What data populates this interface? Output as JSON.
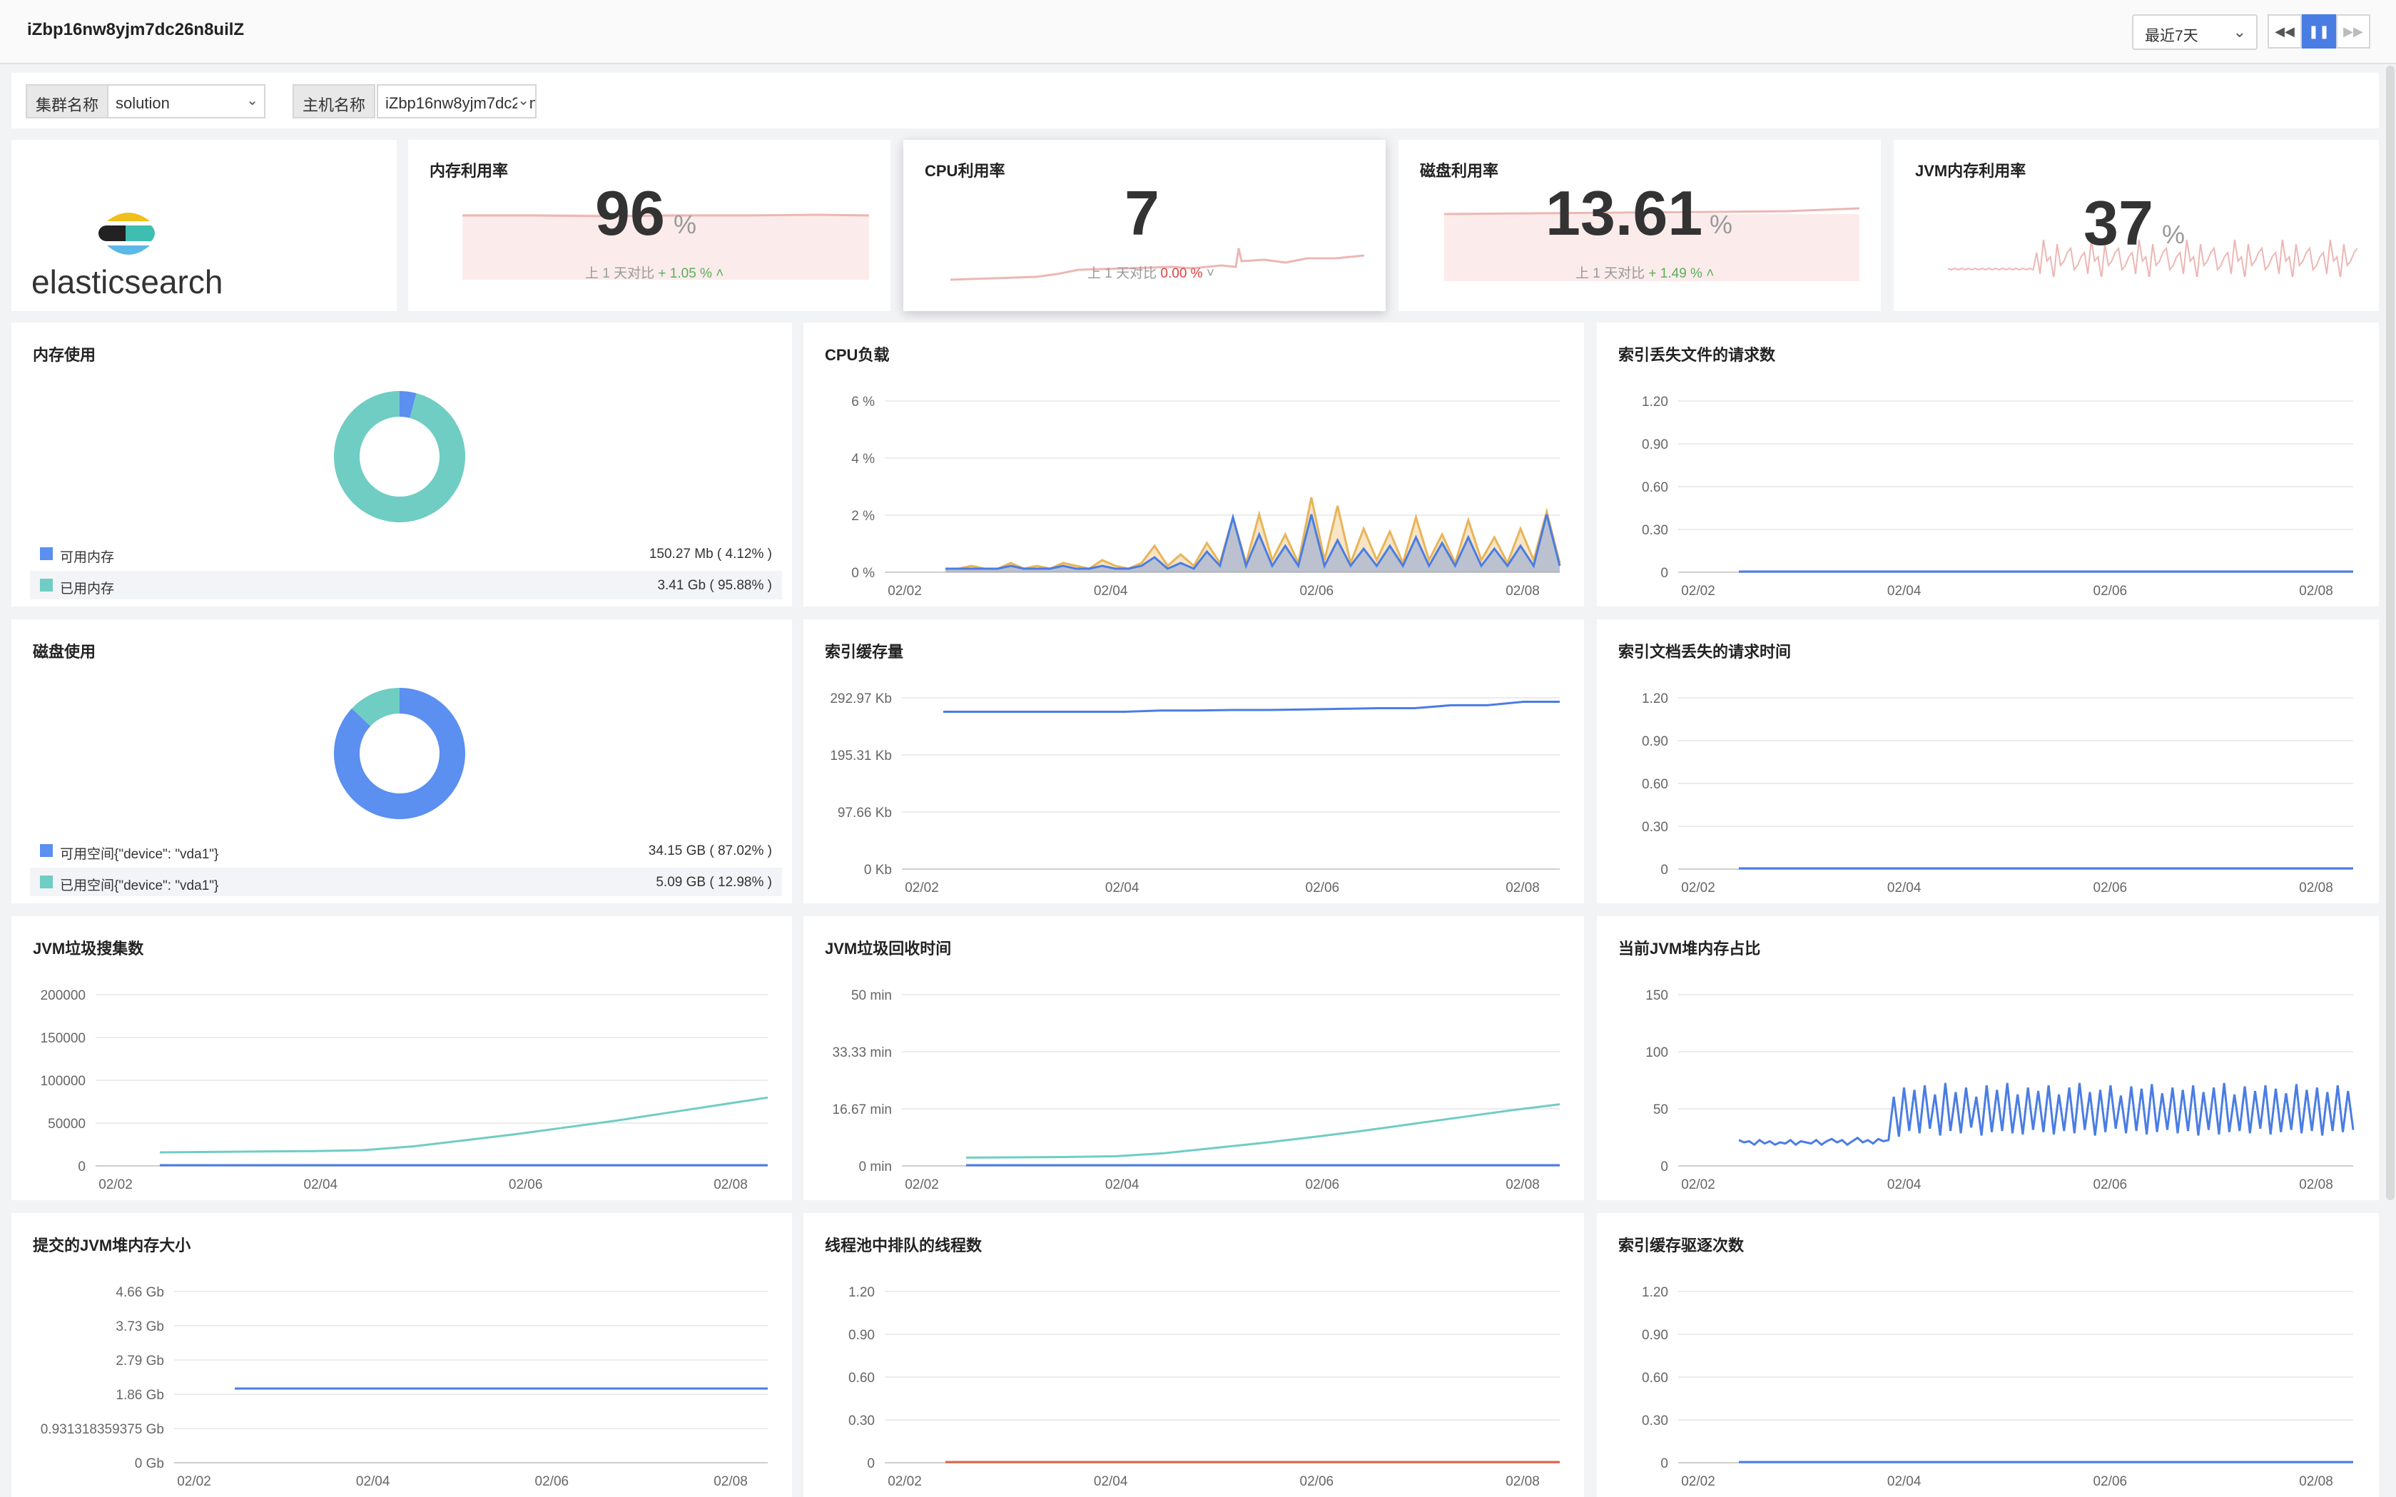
{
  "header": {
    "title": "iZbp16nw8yjm7dc26n8uilZ",
    "time_range": "最近7天"
  },
  "filters": {
    "cluster_label": "集群名称",
    "cluster_value": "solution",
    "host_label": "主机名称",
    "host_value": "iZbp16nw8yjm7dc26n8uilZ"
  },
  "logo": {
    "text": "elasticsearch"
  },
  "stats": [
    {
      "title": "内存利用率",
      "value": "96",
      "unit": "%",
      "compare_label": "上 1 天对比",
      "compare_value": "+ 1.05 %",
      "trend": "up"
    },
    {
      "title": "CPU利用率",
      "value": "7",
      "unit": "",
      "compare_label": "上 1 天对比",
      "compare_value": "0.00 %",
      "trend": "down"
    },
    {
      "title": "磁盘利用率",
      "value": "13.61",
      "unit": "%",
      "compare_label": "上 1 天对比",
      "compare_value": "+ 1.49 %",
      "trend": "up"
    },
    {
      "title": "JVM内存利用率",
      "value": "37",
      "unit": "%",
      "compare_label": "",
      "compare_value": "",
      "trend": ""
    }
  ],
  "memory_panel": {
    "title": "内存使用",
    "legend": [
      {
        "label": "可用内存",
        "value": "150.27 Mb ( 4.12% )",
        "color": "#5b8ff0"
      },
      {
        "label": "已用内存",
        "value": "3.41 Gb ( 95.88% )",
        "color": "#6fcdc3"
      }
    ]
  },
  "disk_panel": {
    "title": "磁盘使用",
    "legend": [
      {
        "label": "可用空间{\"device\": \"vda1\"}",
        "value": "34.15 GB ( 87.02% )",
        "color": "#5b8ff0"
      },
      {
        "label": "已用空间{\"device\": \"vda1\"}",
        "value": "5.09 GB ( 12.98% )",
        "color": "#6fcdc3"
      }
    ]
  },
  "chart_data": [
    {
      "id": "mem-donut",
      "type": "pie",
      "labels": [
        "可用内存",
        "已用内存"
      ],
      "values": [
        4.12,
        95.88
      ],
      "colors": [
        "#5b8ff0",
        "#6fcdc3"
      ]
    },
    {
      "id": "disk-donut",
      "type": "pie",
      "labels": [
        "可用空间{\"device\": \"vda1\"}",
        "已用空间{\"device\": \"vda1\"}"
      ],
      "values": [
        87.02,
        12.98
      ],
      "colors": [
        "#5b8ff0",
        "#6fcdc3"
      ]
    },
    {
      "id": "cpu-load",
      "type": "line",
      "title": "CPU负载",
      "x_ticks": [
        "02/02",
        "02/04",
        "02/06",
        "02/08"
      ],
      "y_ticks": [
        "6 %",
        "4 %",
        "2 %",
        "0 %"
      ],
      "ylim": [
        0,
        6
      ],
      "series": [
        {
          "color": "#e8b45a",
          "values": [
            0.1,
            0.1,
            0.2,
            0.1,
            0.1,
            0.3,
            0.1,
            0.2,
            0.1,
            0.3,
            0.2,
            0.1,
            0.4,
            0.2,
            0.1,
            0.3,
            0.9,
            0.2,
            0.6,
            0.2,
            1.0,
            0.3,
            1.9,
            0.3,
            2.0,
            0.4,
            1.3,
            0.3,
            2.6,
            0.4,
            2.3,
            0.3,
            1.5,
            0.4,
            1.4,
            0.3,
            1.9,
            0.4,
            1.3,
            0.3,
            1.8,
            0.4,
            1.2,
            0.3,
            1.5,
            0.4,
            2.1,
            0.3
          ]
        },
        {
          "color": "#4a7de3",
          "values": [
            0.1,
            0.1,
            0.1,
            0.1,
            0.1,
            0.2,
            0.1,
            0.1,
            0.1,
            0.2,
            0.1,
            0.1,
            0.2,
            0.1,
            0.1,
            0.2,
            0.5,
            0.1,
            0.3,
            0.1,
            0.7,
            0.2,
            1.9,
            0.2,
            1.3,
            0.2,
            0.9,
            0.2,
            2.0,
            0.2,
            1.1,
            0.2,
            0.8,
            0.2,
            0.9,
            0.2,
            1.2,
            0.2,
            1.0,
            0.2,
            1.2,
            0.2,
            0.8,
            0.2,
            0.9,
            0.2,
            2.0,
            0.2
          ]
        }
      ]
    },
    {
      "id": "idx-missing-docs",
      "type": "line",
      "title": "索引丢失文件的请求数",
      "x_ticks": [
        "02/02",
        "02/04",
        "02/06",
        "02/08"
      ],
      "y_ticks": [
        "1.20",
        "0.90",
        "0.60",
        "0.30",
        "0"
      ],
      "ylim": [
        0,
        1.2
      ],
      "series": [
        {
          "color": "#4a7de3",
          "values": [
            0,
            0,
            0,
            0,
            0,
            0,
            0,
            0,
            0,
            0
          ]
        }
      ]
    },
    {
      "id": "idx-cache",
      "type": "line",
      "title": "索引缓存量",
      "x_ticks": [
        "02/02",
        "02/04",
        "02/06",
        "02/08"
      ],
      "y_ticks": [
        "292.97 Kb",
        "195.31 Kb",
        "97.66 Kb",
        "0 Kb"
      ],
      "ylim": [
        0,
        292.97
      ],
      "series": [
        {
          "color": "#4a7de3",
          "values": [
            268,
            268,
            268,
            268,
            268,
            268,
            270,
            270,
            271,
            271,
            272,
            273,
            274,
            274,
            279,
            279,
            285,
            285
          ]
        }
      ]
    },
    {
      "id": "idx-missing-time",
      "type": "line",
      "title": "索引文档丢失的请求时间",
      "x_ticks": [
        "02/02",
        "02/04",
        "02/06",
        "02/08"
      ],
      "y_ticks": [
        "1.20",
        "0.90",
        "0.60",
        "0.30",
        "0"
      ],
      "ylim": [
        0,
        1.2
      ],
      "series": [
        {
          "color": "#4a7de3",
          "values": [
            0,
            0,
            0,
            0,
            0,
            0,
            0,
            0,
            0,
            0
          ]
        }
      ]
    },
    {
      "id": "jvm-gc-count",
      "type": "line",
      "title": "JVM垃圾搜集数",
      "x_ticks": [
        "02/02",
        "02/04",
        "02/06",
        "02/08"
      ],
      "y_ticks": [
        "200000",
        "150000",
        "100000",
        "50000",
        "0"
      ],
      "ylim": [
        0,
        200000
      ],
      "series": [
        {
          "color": "#6fcdc3",
          "values": [
            15000,
            15500,
            16000,
            16500,
            17500,
            22000,
            29000,
            36000,
            44000,
            52000,
            61000,
            70000,
            79000
          ]
        },
        {
          "color": "#4a7de3",
          "values": [
            0,
            0,
            0,
            0,
            0,
            0,
            0,
            0,
            0,
            0,
            0,
            0,
            0
          ]
        }
      ]
    },
    {
      "id": "jvm-gc-time",
      "type": "line",
      "title": "JVM垃圾回收时间",
      "x_ticks": [
        "02/02",
        "02/04",
        "02/06",
        "02/08"
      ],
      "y_ticks": [
        "50 min",
        "33.33 min",
        "16.67 min",
        "0 min"
      ],
      "ylim": [
        0,
        50
      ],
      "series": [
        {
          "color": "#6fcdc3",
          "values": [
            2.2,
            2.3,
            2.4,
            2.6,
            3.5,
            5,
            6.5,
            8.2,
            10,
            12,
            14,
            16,
            17.8
          ]
        },
        {
          "color": "#4a7de3",
          "values": [
            0,
            0,
            0,
            0,
            0,
            0,
            0,
            0,
            0,
            0,
            0,
            0,
            0
          ]
        }
      ]
    },
    {
      "id": "jvm-heap-ratio",
      "type": "line",
      "title": "当前JVM堆内存占比",
      "x_ticks": [
        "02/02",
        "02/04",
        "02/06",
        "02/08"
      ],
      "y_ticks": [
        "150",
        "100",
        "50",
        "0"
      ],
      "ylim": [
        0,
        150
      ],
      "series": [
        {
          "color": "#4a7de3",
          "values": [
            22,
            20,
            21,
            18,
            22,
            19,
            21,
            18,
            20,
            19,
            22,
            18,
            21,
            20,
            19,
            22,
            18,
            21,
            23,
            20,
            22,
            18,
            21,
            24,
            20,
            22,
            19,
            23,
            21,
            22,
            60,
            25,
            68,
            30,
            66,
            28,
            70,
            32,
            62,
            26,
            72,
            30,
            64,
            28,
            68,
            33,
            60,
            26,
            70,
            29,
            66,
            30,
            72,
            28,
            62,
            27,
            68,
            31,
            65,
            29,
            70,
            27,
            62,
            30,
            68,
            28,
            72,
            31,
            64,
            26,
            66,
            29,
            70,
            32,
            61,
            28,
            69,
            30,
            67,
            27,
            71,
            29,
            63,
            31,
            68,
            28,
            66,
            30,
            70,
            26,
            64,
            31,
            68,
            27,
            72,
            29,
            62,
            30,
            69,
            28,
            65,
            32,
            70,
            27,
            67,
            29,
            63,
            31,
            71,
            28,
            66,
            30,
            68,
            26,
            64,
            30,
            70,
            29,
            65,
            31
          ]
        }
      ]
    },
    {
      "id": "jvm-heap-committed",
      "type": "line",
      "title": "提交的JVM堆内存大小",
      "x_ticks": [
        "02/02",
        "02/04",
        "02/06",
        "02/08"
      ],
      "y_ticks": [
        "4.66 Gb",
        "3.73 Gb",
        "2.79 Gb",
        "1.86 Gb",
        "0.931318359375 Gb",
        "0 Gb"
      ],
      "ylim": [
        0,
        4.66
      ],
      "series": [
        {
          "color": "#4a7de3",
          "values": [
            2.0,
            2.0,
            2.0,
            2.0,
            2.0,
            2.0,
            2.0,
            2.0
          ]
        }
      ]
    },
    {
      "id": "threadpool-queue",
      "type": "line",
      "title": "线程池中排队的线程数",
      "x_ticks": [
        "02/02",
        "02/04",
        "02/06",
        "02/08"
      ],
      "y_ticks": [
        "1.20",
        "0.90",
        "0.60",
        "0.30",
        "0"
      ],
      "ylim": [
        0,
        1.2
      ],
      "series": [
        {
          "color": "#e0614a",
          "values": [
            0,
            0,
            0,
            0,
            0,
            0,
            0,
            0,
            0,
            0
          ]
        }
      ]
    },
    {
      "id": "idx-cache-evictions",
      "type": "line",
      "title": "索引缓存驱逐次数",
      "x_ticks": [
        "02/02",
        "02/04",
        "02/06",
        "02/08"
      ],
      "y_ticks": [
        "1.20",
        "0.90",
        "0.60",
        "0.30",
        "0"
      ],
      "ylim": [
        0,
        1.2
      ],
      "series": [
        {
          "color": "#4a7de3",
          "values": [
            0,
            0,
            0,
            0,
            0,
            0,
            0,
            0,
            0,
            0
          ]
        }
      ]
    }
  ]
}
